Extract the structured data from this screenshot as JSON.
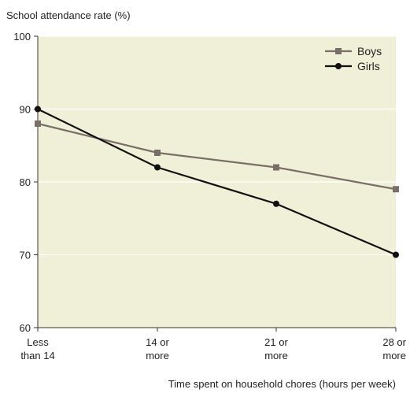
{
  "chart_data": {
    "type": "line",
    "ylabel": "School attendance rate (%)",
    "xlabel": "Time spent on household chores (hours per week)",
    "categories": [
      [
        "Less",
        "than 14"
      ],
      [
        "14 or",
        "more"
      ],
      [
        "21 or",
        "more"
      ],
      [
        "28 or",
        "more"
      ]
    ],
    "ylim": [
      60,
      100
    ],
    "yticks": [
      60,
      70,
      80,
      90,
      100
    ],
    "grid": "horizontal",
    "legend_position": "top-right",
    "series": [
      {
        "name": "Boys",
        "values": [
          88,
          84,
          82,
          79
        ],
        "color": "#7a6e69",
        "marker": "square"
      },
      {
        "name": "Girls",
        "values": [
          90,
          82,
          77,
          70
        ],
        "color": "#111111",
        "marker": "circle"
      }
    ],
    "plot_background": "#f0f0d8",
    "grid_color": "#ffffff"
  }
}
